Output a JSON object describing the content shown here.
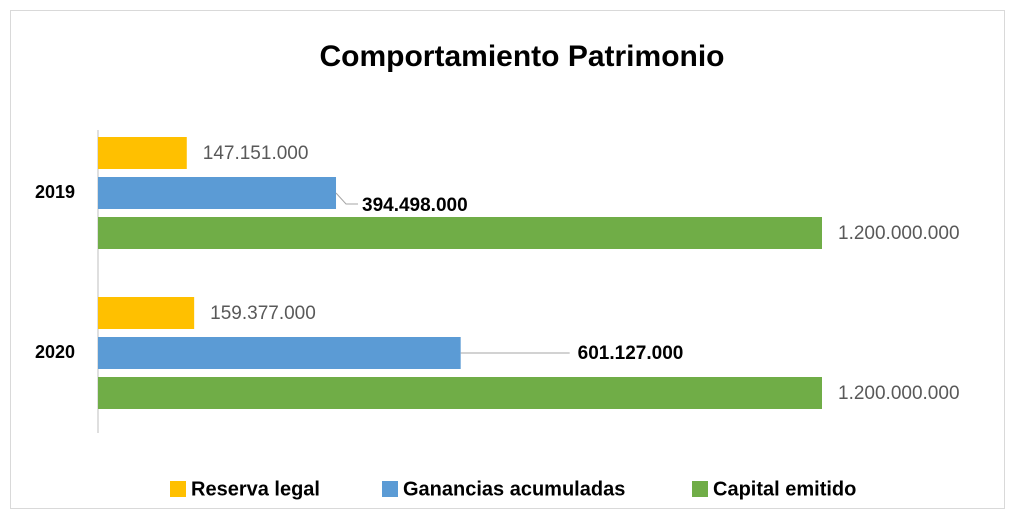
{
  "chart_data": {
    "type": "hbar",
    "title": "Comportamiento Patrimonio",
    "categories": [
      "2019",
      "2020"
    ],
    "series": [
      {
        "name": "Reserva legal",
        "color": "#FFC000",
        "values": [
          147151000,
          159377000
        ],
        "value_labels": [
          "147.151.000",
          "159.377.000"
        ]
      },
      {
        "name": "Ganancias acumuladas",
        "color": "#5B9BD5",
        "values": [
          394498000,
          601127000
        ],
        "value_labels": [
          "394.498.000",
          "601.127.000"
        ]
      },
      {
        "name": "Capital emitido",
        "color": "#70AD47",
        "values": [
          1200000000,
          1200000000
        ],
        "value_labels": [
          "1.200.000.000",
          "1.200.000.000"
        ]
      }
    ],
    "legend": "bottom"
  }
}
